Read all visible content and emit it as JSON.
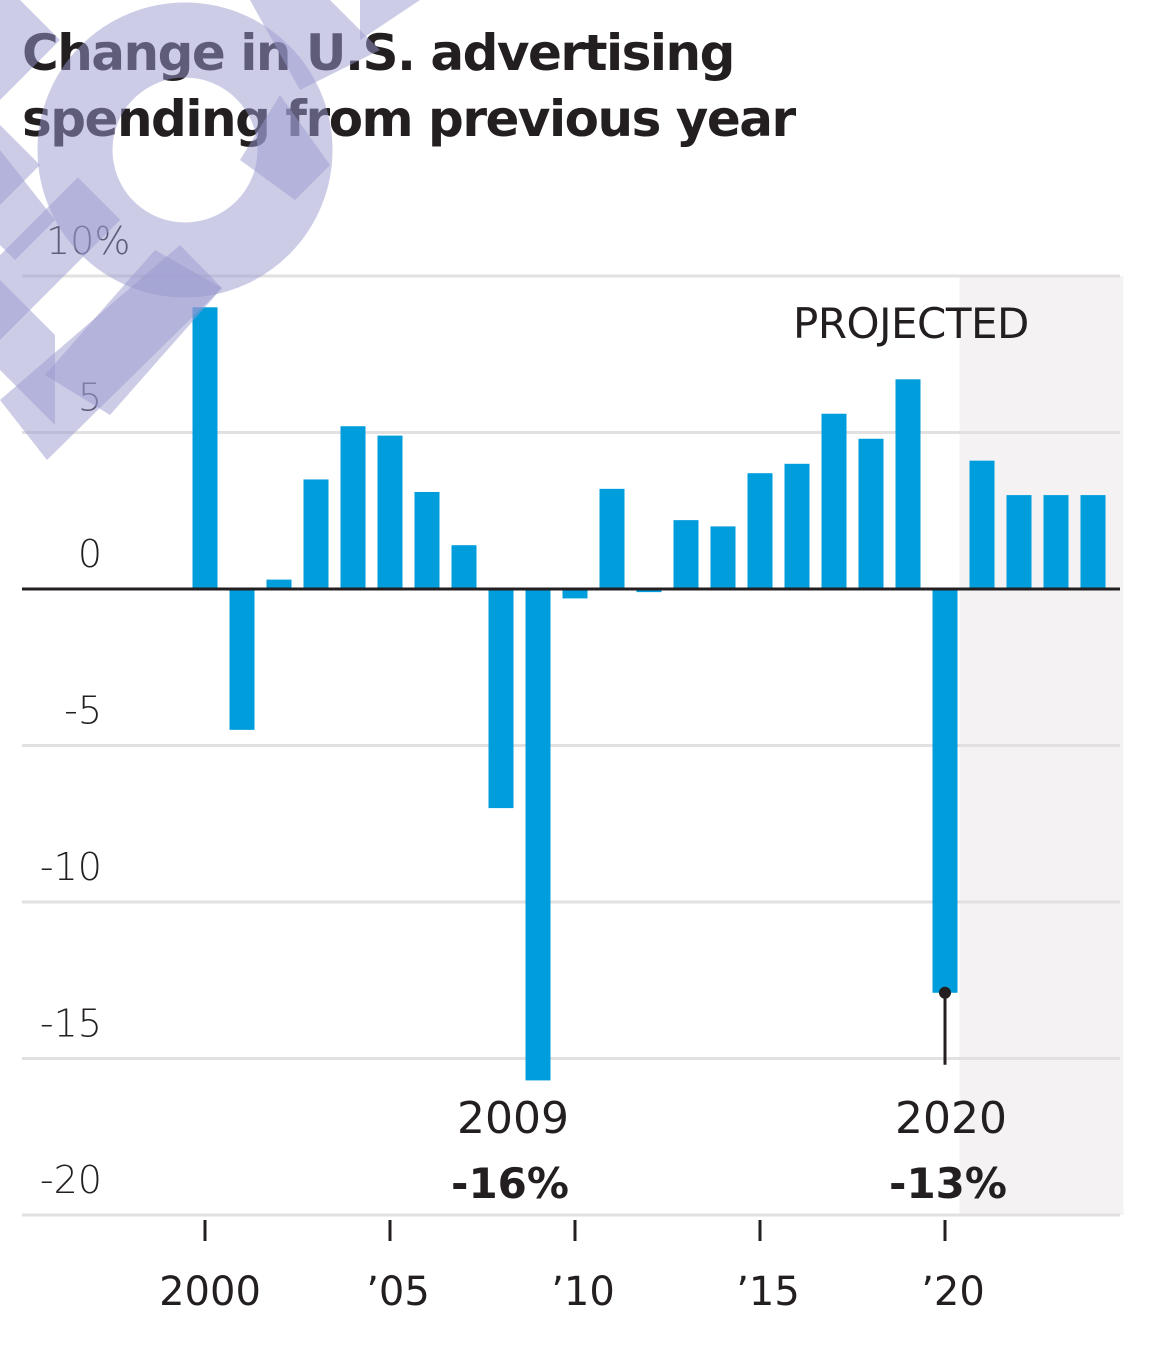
{
  "title_lines": [
    "Change in U.S. advertising",
    "spending from previous year"
  ],
  "chart_data": {
    "type": "bar",
    "title": "Change in U.S. advertising spending from previous year",
    "xlabel": "",
    "ylabel": "",
    "unit": "%",
    "categories": [
      "2000",
      "2001",
      "2002",
      "2003",
      "2004",
      "2005",
      "2006",
      "2007",
      "2008",
      "2009",
      "2010",
      "2011",
      "2012",
      "2013",
      "2014",
      "2015",
      "2016",
      "2017",
      "2018",
      "2019",
      "2020",
      "2021",
      "2022",
      "2023",
      "2024"
    ],
    "values": [
      9.0,
      -4.5,
      0.3,
      3.5,
      5.2,
      4.9,
      3.1,
      1.4,
      -7.0,
      -15.7,
      -0.3,
      3.2,
      -0.1,
      2.2,
      2.0,
      3.7,
      4.0,
      5.6,
      4.8,
      6.7,
      -12.9,
      4.1,
      3.0,
      3.0,
      3.0
    ],
    "ylim": [
      -20,
      10
    ],
    "yticks": [
      10,
      5,
      0,
      -5,
      -10,
      -15,
      -20
    ],
    "ytick_labels": [
      "10%",
      "5",
      "0",
      "-5",
      "-10",
      "-15",
      "-20"
    ],
    "xticks": [
      2000,
      2005,
      2010,
      2015,
      2020
    ],
    "xtick_labels": [
      "2000",
      " 05",
      " 10",
      " 15",
      " 20"
    ],
    "grid": true,
    "projected": {
      "label": "PROJECTED",
      "from_year": 2020.5,
      "to_year": 2024.5
    },
    "annotations": [
      {
        "year": "2009",
        "value_label": "-16%",
        "category": "2009"
      },
      {
        "year": "2020",
        "value_label": "-13%",
        "category": "2020"
      }
    ],
    "colors": {
      "bar": "#009ddc",
      "grid": "#e2e0e0",
      "zero_line": "#231f20",
      "projected_bg": "#f4f2f3",
      "text": "#231f20"
    }
  }
}
